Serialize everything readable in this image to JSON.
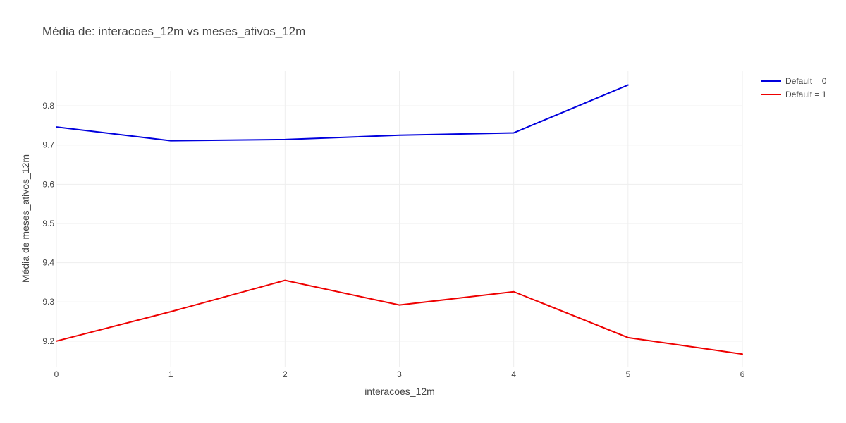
{
  "chart_data": {
    "type": "line",
    "title": "Média de: interacoes_12m vs meses_ativos_12m",
    "xlabel": "interacoes_12m",
    "ylabel": "Média de meses_ativos_12m",
    "xlim": [
      0,
      6
    ],
    "ylim": [
      9.135,
      9.89
    ],
    "x_ticks": [
      0,
      1,
      2,
      3,
      4,
      5,
      6
    ],
    "x_tick_labels": [
      "0",
      "1",
      "2",
      "3",
      "4",
      "5",
      "6"
    ],
    "y_ticks": [
      9.2,
      9.3,
      9.4,
      9.5,
      9.6,
      9.7,
      9.8
    ],
    "y_tick_labels": [
      "9.2",
      "9.3",
      "9.4",
      "9.5",
      "9.6",
      "9.7",
      "9.8"
    ],
    "grid": true,
    "legend_position": "top-right",
    "series": [
      {
        "name": "Default = 0",
        "color": "#0000dd",
        "x": [
          0,
          1,
          2,
          3,
          4,
          5
        ],
        "y": [
          9.746,
          9.711,
          9.714,
          9.725,
          9.731,
          9.853
        ]
      },
      {
        "name": "Default = 1",
        "color": "#ee0000",
        "x": [
          0,
          1,
          2,
          3,
          4,
          5,
          6
        ],
        "y": [
          9.2,
          9.275,
          9.355,
          9.292,
          9.326,
          9.209,
          9.167
        ]
      }
    ]
  }
}
